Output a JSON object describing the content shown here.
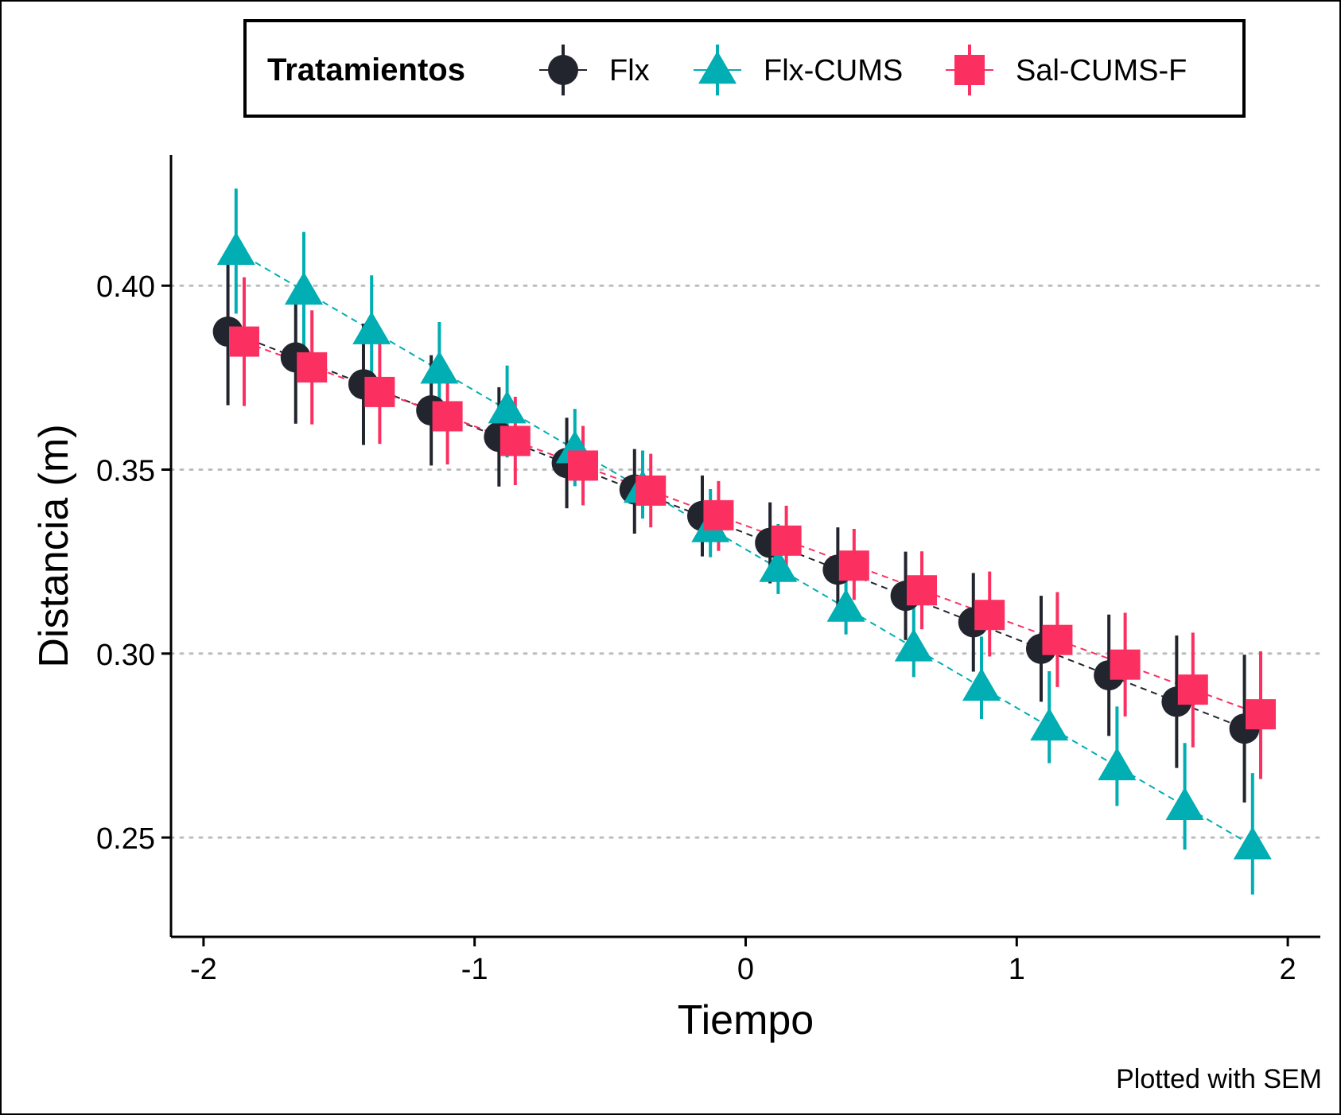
{
  "chart_data": {
    "type": "scatter",
    "title": "",
    "xlabel": "Tiempo",
    "ylabel": "Distancia (m)",
    "caption": "Plotted with SEM",
    "xlim": [
      -2.12,
      2.12
    ],
    "ylim": [
      0.223,
      0.4355
    ],
    "xticks": [
      -2,
      -1,
      0,
      1,
      2
    ],
    "xtick_labels": [
      "-2",
      "-1",
      "0",
      "1",
      "2"
    ],
    "yticks": [
      0.25,
      0.3,
      0.35,
      0.4
    ],
    "ytick_labels": [
      "0.25",
      "0.30",
      "0.35",
      "0.40"
    ],
    "grid": "horizontal-dotted",
    "legend": {
      "title": "Tratamientos",
      "placement": "top",
      "entries": [
        "Flx",
        "Flx-CUMS",
        "Sal-CUMS-F"
      ]
    },
    "series": [
      {
        "name": "Flx",
        "color": "#22252e",
        "marker": "circle",
        "x": [
          -1.91,
          -1.66,
          -1.41,
          -1.16,
          -0.91,
          -0.66,
          -0.41,
          -0.16,
          0.09,
          0.34,
          0.59,
          0.84,
          1.09,
          1.34,
          1.59,
          1.84
        ],
        "y": [
          0.3875,
          0.3805,
          0.3732,
          0.3661,
          0.3589,
          0.3518,
          0.3446,
          0.3374,
          0.3301,
          0.3228,
          0.3157,
          0.3085,
          0.3013,
          0.2941,
          0.2869,
          0.2796
        ],
        "err_low": [
          0.3675,
          0.3625,
          0.3567,
          0.3511,
          0.3454,
          0.3395,
          0.3326,
          0.3264,
          0.3191,
          0.3118,
          0.3037,
          0.2951,
          0.2869,
          0.2776,
          0.2689,
          0.2595
        ],
        "err_high": [
          0.4075,
          0.3985,
          0.3897,
          0.3811,
          0.3724,
          0.3641,
          0.3556,
          0.3484,
          0.3411,
          0.3343,
          0.3277,
          0.3219,
          0.3157,
          0.3106,
          0.3049,
          0.2997
        ]
      },
      {
        "name": "Flx-CUMS",
        "color": "#00aeb3",
        "marker": "triangle",
        "x": [
          -1.88,
          -1.63,
          -1.38,
          -1.13,
          -0.88,
          -0.63,
          -0.38,
          -0.13,
          0.12,
          0.37,
          0.62,
          0.87,
          1.12,
          1.37,
          1.62,
          1.87
        ],
        "y": [
          0.4094,
          0.3986,
          0.3878,
          0.3771,
          0.3663,
          0.3555,
          0.3447,
          0.334,
          0.3232,
          0.3124,
          0.3016,
          0.2909,
          0.2801,
          0.2693,
          0.2585,
          0.2478
        ],
        "err_low": [
          0.3924,
          0.3826,
          0.3728,
          0.3631,
          0.3533,
          0.3455,
          0.3367,
          0.3262,
          0.3162,
          0.3052,
          0.2936,
          0.2822,
          0.2702,
          0.2586,
          0.2467,
          0.2345
        ],
        "err_high": [
          0.4264,
          0.4146,
          0.4028,
          0.3901,
          0.3783,
          0.3665,
          0.3552,
          0.3447,
          0.3352,
          0.3236,
          0.3124,
          0.3046,
          0.2952,
          0.2856,
          0.2757,
          0.2675
        ]
      },
      {
        "name": "Sal-CUMS-F",
        "color": "#fb3061",
        "marker": "square",
        "x": [
          -1.85,
          -1.6,
          -1.35,
          -1.1,
          -0.85,
          -0.6,
          -0.35,
          -0.1,
          0.15,
          0.4,
          0.65,
          0.9,
          1.15,
          1.4,
          1.65,
          1.9
        ],
        "y": [
          0.3848,
          0.3778,
          0.3711,
          0.3645,
          0.3578,
          0.3511,
          0.3443,
          0.3376,
          0.3307,
          0.3239,
          0.3172,
          0.3105,
          0.3037,
          0.297,
          0.2902,
          0.2835
        ],
        "err_low": [
          0.3673,
          0.3623,
          0.357,
          0.3514,
          0.3458,
          0.3403,
          0.3343,
          0.3279,
          0.3212,
          0.3146,
          0.3066,
          0.2992,
          0.2909,
          0.2829,
          0.2745,
          0.2659
        ],
        "err_high": [
          0.4023,
          0.3933,
          0.3852,
          0.3776,
          0.3698,
          0.3619,
          0.3543,
          0.3469,
          0.3402,
          0.3339,
          0.3278,
          0.3223,
          0.3167,
          0.3111,
          0.3057,
          0.3006
        ]
      }
    ]
  }
}
